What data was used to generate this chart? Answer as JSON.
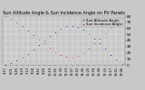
{
  "title": "Sun Altitude Angle & Sun Incidence Angle on PV Panels",
  "title_fontsize": 3.5,
  "bg_color": "#c8c8c8",
  "plot_bg_color": "#c8c8c8",
  "grid_color": "#ffffff",
  "blue_color": "#0000bb",
  "red_color": "#cc0000",
  "blue_label": "Sun Altitude Angle",
  "red_label": "Sun Incidence Angle",
  "x_times": [
    "4:17",
    "5:01",
    "5:45",
    "6:29",
    "7:13",
    "7:58",
    "8:42",
    "9:26",
    "10:10",
    "10:55",
    "11:39",
    "12:23",
    "13:07",
    "13:52",
    "14:36",
    "15:20",
    "16:04",
    "16:49",
    "17:33",
    "18:17",
    "19:01",
    "19:46"
  ],
  "blue_y": [
    0,
    3,
    7,
    12,
    18,
    25,
    32,
    40,
    47,
    54,
    59,
    63,
    64,
    62,
    58,
    51,
    43,
    35,
    26,
    17,
    9,
    2
  ],
  "red_y": [
    80,
    75,
    70,
    63,
    56,
    49,
    42,
    35,
    28,
    21,
    16,
    13,
    12,
    15,
    20,
    27,
    35,
    43,
    52,
    61,
    69,
    77
  ],
  "ylim": [
    0,
    80
  ],
  "yticks": [
    0,
    10,
    20,
    30,
    40,
    50,
    60,
    70,
    80
  ],
  "ytick_labels": [
    "0",
    "10",
    "20",
    "30",
    "40",
    "50",
    "60",
    "70",
    "80"
  ],
  "ylabel_fontsize": 3.0,
  "xlabel_fontsize": 2.5,
  "marker_size": 0.8,
  "legend_fontsize": 2.8
}
